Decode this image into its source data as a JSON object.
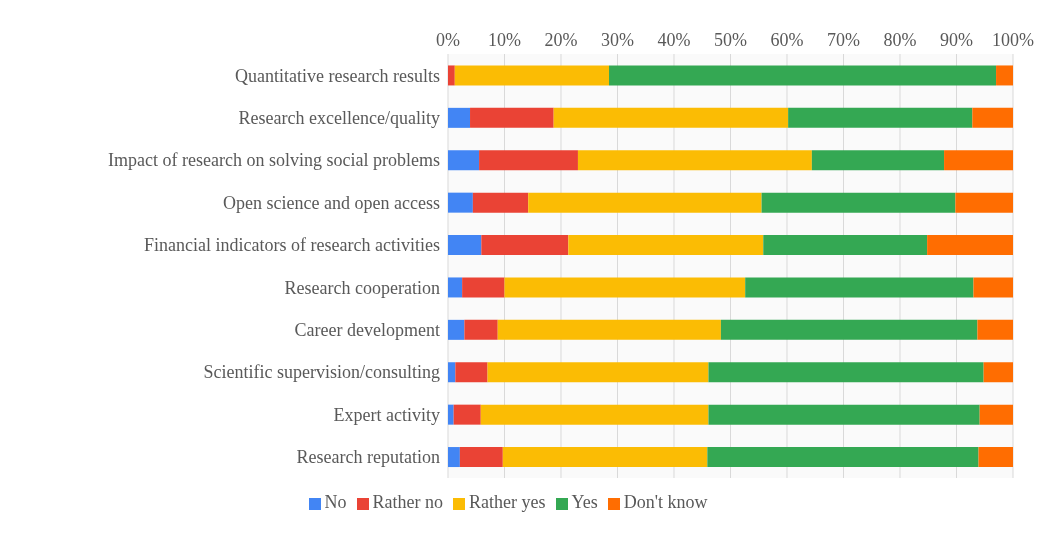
{
  "chart_data": {
    "type": "bar",
    "orientation": "horizontal",
    "stacked": true,
    "categories": [
      "Quantitative research results",
      "Research excellence/quality",
      "Impact of research on solving social problems",
      "Open science and open access",
      "Financial indicators of research activities",
      "Research cooperation",
      "Career development",
      "Scientific supervision/consulting",
      "Expert activity",
      "Research reputation"
    ],
    "series": [
      {
        "name": "No",
        "color": "#4285f4",
        "values": [
          0,
          3.9,
          5.5,
          4.4,
          5.9,
          2.5,
          2.9,
          1.3,
          1.0,
          2.1
        ]
      },
      {
        "name": "Rather no",
        "color": "#ea4335",
        "values": [
          1.2,
          14.8,
          17.5,
          9.8,
          15.4,
          7.5,
          5.9,
          5.7,
          4.8,
          7.6
        ]
      },
      {
        "name": "Rather yes",
        "color": "#fbbc04",
        "values": [
          27.3,
          41.5,
          41.4,
          41.3,
          34.5,
          42.6,
          39.5,
          39.1,
          40.3,
          36.2
        ]
      },
      {
        "name": "Yes",
        "color": "#34a853",
        "values": [
          68.5,
          32.6,
          23.4,
          34.3,
          29.0,
          40.4,
          45.4,
          48.7,
          48.0,
          48.0
        ]
      },
      {
        "name": "Don't know",
        "color": "#ff6d01",
        "values": [
          3.0,
          7.2,
          12.2,
          10.2,
          15.2,
          7.0,
          6.3,
          5.2,
          5.9,
          6.1
        ]
      }
    ],
    "xlim": [
      0,
      100
    ],
    "xticks": [
      {
        "value": 0,
        "label": "0%"
      },
      {
        "value": 10,
        "label": "10%"
      },
      {
        "value": 20,
        "label": "20%"
      },
      {
        "value": 30,
        "label": "30%"
      },
      {
        "value": 40,
        "label": "40%"
      },
      {
        "value": 50,
        "label": "50%"
      },
      {
        "value": 60,
        "label": "60%"
      },
      {
        "value": 70,
        "label": "70%"
      },
      {
        "value": 80,
        "label": "80%"
      },
      {
        "value": 90,
        "label": "90%"
      },
      {
        "value": 100,
        "label": "100%"
      }
    ],
    "grid": "x",
    "legend": "bottom"
  }
}
